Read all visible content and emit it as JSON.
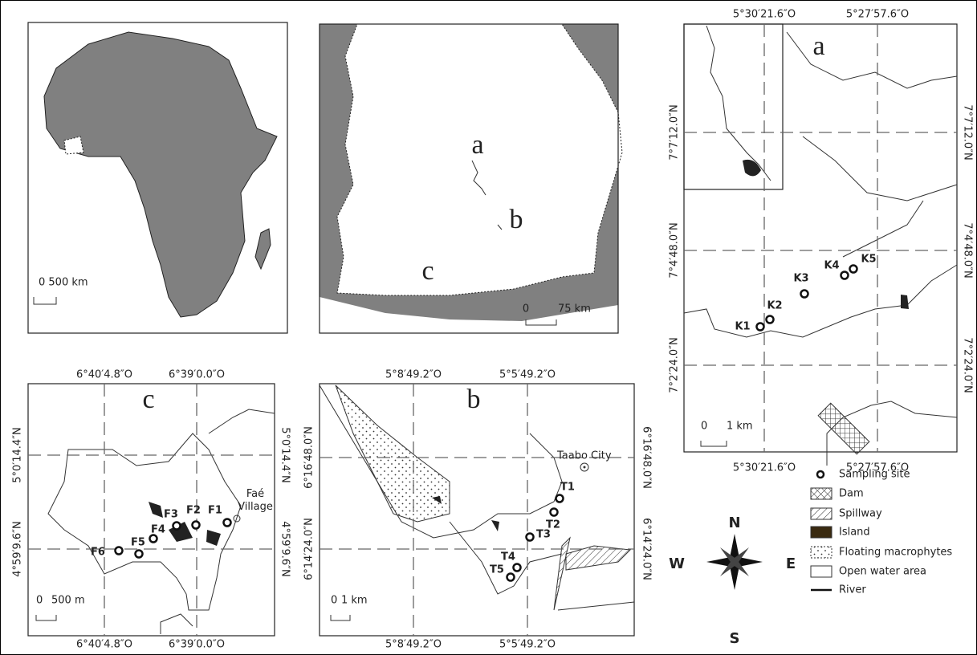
{
  "africa_map": {
    "scale_bar": "0 500 km"
  },
  "country_map": {
    "site_labels": [
      "a",
      "b",
      "c"
    ],
    "scale_bar": [
      "0",
      "75 km"
    ]
  },
  "panel_a": {
    "title": "a",
    "top_coords": [
      "5°30′21.6″O",
      "5°27′57.6″O"
    ],
    "bottom_coords": [
      "5°30′21.6″O",
      "5°27′57.6″O"
    ],
    "left_coords": [
      "7°7′12.0″N",
      "7°4′48.0″N",
      "7°2′24.0″N"
    ],
    "right_coords": [
      "7°7′12.0″N",
      "7°4′48.0″N",
      "7°2′24.0″N"
    ],
    "sites": [
      "K1",
      "K2",
      "K3",
      "K4",
      "K5"
    ],
    "scale_bar": [
      "0",
      "1 km"
    ]
  },
  "panel_c": {
    "title": "c",
    "top_coords": [
      "6°40′4.8″O",
      "6°39′0.0″O"
    ],
    "bottom_coords": [
      "6°40′4.8″O",
      "6°39′0.0″O"
    ],
    "left_coords": [
      "5°0′14.4″N",
      "4°59′9.6″N"
    ],
    "right_coords": [
      "5°0′14.4″N",
      "4°59′9.6″N"
    ],
    "sites": [
      "F1",
      "F2",
      "F3",
      "F4",
      "F5",
      "F6"
    ],
    "place": "Faé Village",
    "scale_bar": [
      "0",
      "500 m"
    ]
  },
  "panel_b": {
    "title": "b",
    "top_coords": [
      "5°8′49.2″O",
      "5°5′49.2″O"
    ],
    "bottom_coords": [
      "5°8′49.2″O",
      "5°5′49.2″O"
    ],
    "left_coords": [
      "6°16′48.0″N",
      "6°14′24.0″N"
    ],
    "right_coords": [
      "6°16′48.0″N",
      "6°14′24.0″N"
    ],
    "sites": [
      "T1",
      "T2",
      "T3",
      "T4",
      "T5"
    ],
    "place": "Taabo City",
    "scale_bar": [
      "0",
      "1 km"
    ]
  },
  "legend": {
    "items": [
      "Sampling site",
      "Dam",
      "Spillway",
      "Island",
      "Floating macrophytes",
      "Open water area",
      "River"
    ]
  },
  "compass": {
    "north": "N",
    "south": "S",
    "east": "E",
    "west": "W"
  }
}
